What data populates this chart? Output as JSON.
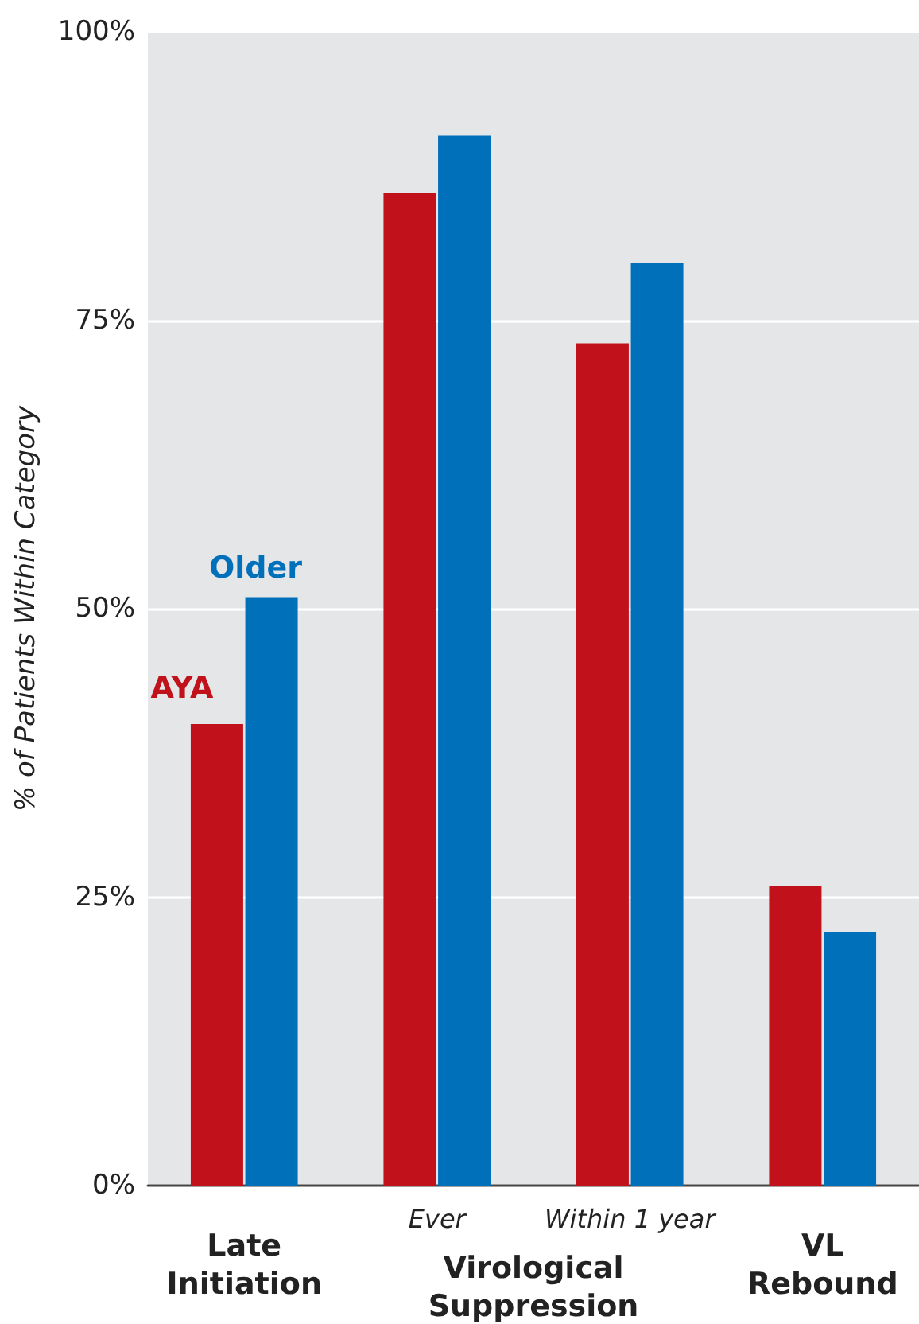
{
  "chart_data": {
    "type": "bar",
    "ylabel": "% of Patients Within Category",
    "categories": [
      "Late Initiation",
      "Ever",
      "Within 1 year",
      "VL Rebound"
    ],
    "series": [
      {
        "name": "AYA",
        "color": "#c1121c",
        "values": [
          40,
          86,
          73,
          26
        ]
      },
      {
        "name": "Older",
        "color": "#0070bb",
        "values": [
          51,
          91,
          80,
          22
        ]
      }
    ],
    "ylim": [
      0,
      100
    ],
    "yticks": [
      {
        "value": 0,
        "label": "0%"
      },
      {
        "value": 25,
        "label": "25%"
      },
      {
        "value": 50,
        "label": "50%"
      },
      {
        "value": 75,
        "label": "75%"
      },
      {
        "value": 100,
        "label": "100%"
      }
    ],
    "grid": "y",
    "legend": false,
    "annotations": [
      "Virological Suppression"
    ]
  }
}
